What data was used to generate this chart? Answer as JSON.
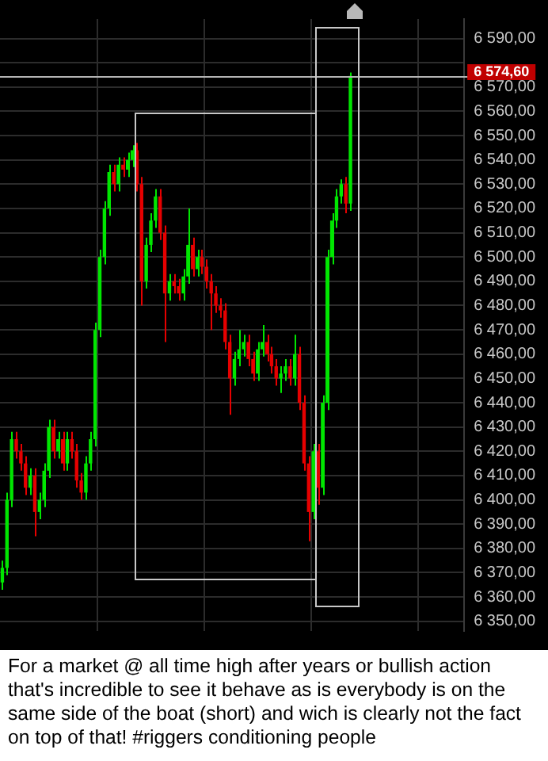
{
  "chart_data": {
    "type": "candlestick",
    "categories": [
      null,
      null,
      null,
      null,
      null,
      null,
      null,
      null,
      null,
      null,
      null,
      null,
      null,
      null,
      null,
      null,
      null,
      null,
      null,
      null,
      null,
      null,
      null,
      null,
      null,
      null,
      null,
      null,
      null,
      null,
      null,
      null,
      null,
      null,
      null,
      null,
      null,
      null,
      null,
      null,
      null,
      null,
      null,
      null,
      null,
      null,
      null,
      null,
      null,
      null,
      null,
      null,
      null,
      null,
      null,
      null,
      null,
      null,
      null,
      null,
      null,
      null,
      null,
      null,
      null,
      null,
      null,
      null,
      null,
      null,
      null,
      null,
      null,
      null,
      null,
      null,
      null,
      null,
      null,
      null,
      null,
      null,
      null,
      null,
      null,
      null,
      null,
      null,
      null,
      null,
      null,
      null,
      null,
      null,
      null,
      null,
      null,
      null,
      null,
      null
    ],
    "ohlc": [
      [
        6366,
        6375,
        6363,
        6372
      ],
      [
        6372,
        6403,
        6369,
        6400
      ],
      [
        6400,
        6428,
        6397,
        6425
      ],
      [
        6425,
        6428,
        6417,
        6420
      ],
      [
        6420,
        6423,
        6412,
        6415
      ],
      [
        6415,
        6418,
        6402,
        6405
      ],
      [
        6405,
        6413,
        6402,
        6410
      ],
      [
        6410,
        6413,
        6385,
        6395
      ],
      [
        6395,
        6403,
        6392,
        6400
      ],
      [
        6400,
        6415,
        6397,
        6412
      ],
      [
        6412,
        6433,
        6409,
        6430
      ],
      [
        6430,
        6433,
        6417,
        6420
      ],
      [
        6420,
        6428,
        6417,
        6425
      ],
      [
        6425,
        6428,
        6412,
        6415
      ],
      [
        6415,
        6428,
        6412,
        6425
      ],
      [
        6425,
        6428,
        6417,
        6420
      ],
      [
        6420,
        6423,
        6405,
        6408
      ],
      [
        6408,
        6411,
        6400,
        6403
      ],
      [
        6403,
        6418,
        6400,
        6415
      ],
      [
        6415,
        6428,
        6412,
        6425
      ],
      [
        6425,
        6473,
        6422,
        6470
      ],
      [
        6470,
        6503,
        6467,
        6500
      ],
      [
        6500,
        6523,
        6497,
        6520
      ],
      [
        6520,
        6538,
        6517,
        6535
      ],
      [
        6535,
        6538,
        6527,
        6530
      ],
      [
        6530,
        6541,
        6527,
        6538
      ],
      [
        6538,
        6541,
        6533,
        6536
      ],
      [
        6536,
        6543,
        6533,
        6540
      ],
      [
        6540,
        6546,
        6537,
        6544
      ],
      [
        6544,
        6547,
        6527,
        6530
      ],
      [
        6530,
        6533,
        6480,
        6490
      ],
      [
        6490,
        6508,
        6487,
        6505
      ],
      [
        6505,
        6518,
        6502,
        6515
      ],
      [
        6515,
        6528,
        6512,
        6525
      ],
      [
        6525,
        6528,
        6507,
        6510
      ],
      [
        6510,
        6513,
        6465,
        6485
      ],
      [
        6485,
        6493,
        6482,
        6490
      ],
      [
        6490,
        6493,
        6485,
        6488
      ],
      [
        6488,
        6491,
        6482,
        6485
      ],
      [
        6485,
        6495,
        6482,
        6492
      ],
      [
        6492,
        6520,
        6489,
        6505
      ],
      [
        6505,
        6508,
        6492,
        6495
      ],
      [
        6495,
        6503,
        6492,
        6500
      ],
      [
        6500,
        6503,
        6493,
        6496
      ],
      [
        6496,
        6499,
        6487,
        6490
      ],
      [
        6490,
        6493,
        6470,
        6485
      ],
      [
        6485,
        6488,
        6477,
        6480
      ],
      [
        6480,
        6483,
        6475,
        6478
      ],
      [
        6478,
        6481,
        6462,
        6465
      ],
      [
        6465,
        6468,
        6435,
        6450
      ],
      [
        6450,
        6461,
        6447,
        6458
      ],
      [
        6458,
        6470,
        6455,
        6462
      ],
      [
        6462,
        6468,
        6459,
        6465
      ],
      [
        6465,
        6468,
        6455,
        6458
      ],
      [
        6458,
        6461,
        6449,
        6452
      ],
      [
        6452,
        6465,
        6449,
        6462
      ],
      [
        6462,
        6472,
        6459,
        6465
      ],
      [
        6465,
        6468,
        6457,
        6460
      ],
      [
        6460,
        6463,
        6452,
        6455
      ],
      [
        6455,
        6458,
        6447,
        6450
      ],
      [
        6450,
        6455,
        6444,
        6452
      ],
      [
        6452,
        6458,
        6449,
        6455
      ],
      [
        6455,
        6458,
        6447,
        6450
      ],
      [
        6450,
        6468,
        6447,
        6460
      ],
      [
        6460,
        6463,
        6437,
        6440
      ],
      [
        6440,
        6443,
        6412,
        6415
      ],
      [
        6415,
        6418,
        6383,
        6395
      ],
      [
        6395,
        6423,
        6392,
        6420
      ],
      [
        6420,
        6423,
        6398,
        6405
      ],
      [
        6405,
        6443,
        6402,
        6440
      ],
      [
        6440,
        6503,
        6437,
        6500
      ],
      [
        6500,
        6518,
        6497,
        6515
      ],
      [
        6515,
        6528,
        6512,
        6525
      ],
      [
        6525,
        6532,
        6522,
        6530
      ],
      [
        6530,
        6533,
        6518,
        6522
      ],
      [
        6522,
        6576,
        6519,
        6574.6
      ],
      null,
      null,
      null,
      null,
      null,
      null,
      null,
      null,
      null,
      null,
      null,
      null,
      null,
      null,
      null,
      null,
      null,
      null,
      null,
      null,
      null,
      null,
      null,
      null
    ],
    "ylim": [
      6346,
      6598
    ],
    "yticks": [
      {
        "value": 6350,
        "label": "6 350,00"
      },
      {
        "value": 6360,
        "label": "6 360,00"
      },
      {
        "value": 6370,
        "label": "6 370,00"
      },
      {
        "value": 6380,
        "label": "6 380,00"
      },
      {
        "value": 6390,
        "label": "6 390,00"
      },
      {
        "value": 6400,
        "label": "6 400,00"
      },
      {
        "value": 6410,
        "label": "6 410,00"
      },
      {
        "value": 6420,
        "label": "6 420,00"
      },
      {
        "value": 6430,
        "label": "6 430,00"
      },
      {
        "value": 6440,
        "label": "6 440,00"
      },
      {
        "value": 6450,
        "label": "6 450,00"
      },
      {
        "value": 6460,
        "label": "6 460,00"
      },
      {
        "value": 6470,
        "label": "6 470,00"
      },
      {
        "value": 6480,
        "label": "6 480,00"
      },
      {
        "value": 6490,
        "label": "6 490,00"
      },
      {
        "value": 6500,
        "label": "6 500,00"
      },
      {
        "value": 6510,
        "label": "6 510,00"
      },
      {
        "value": 6520,
        "label": "6 520,00"
      },
      {
        "value": 6530,
        "label": "6 530,00"
      },
      {
        "value": 6540,
        "label": "6 540,00"
      },
      {
        "value": 6550,
        "label": "6 550,00"
      },
      {
        "value": 6560,
        "label": "6 560,00"
      },
      {
        "value": 6570,
        "label": "6 570,00"
      },
      {
        "value": 6580,
        "label": null
      },
      {
        "value": 6590,
        "label": "6 590,00"
      }
    ],
    "tick_labels": "y",
    "grid": true,
    "ref_lines": [
      {
        "axis": "y",
        "value": 6574.6,
        "label": "6 574,60",
        "color": "#b4b4b4"
      }
    ],
    "annotations": [
      "For a market @ all time high after years or bullish action that's incredible to see it behave as is everybody is on the same side of the boat (short) and wich is clearly not the fact on top of that! #riggers conditioning people"
    ]
  }
}
